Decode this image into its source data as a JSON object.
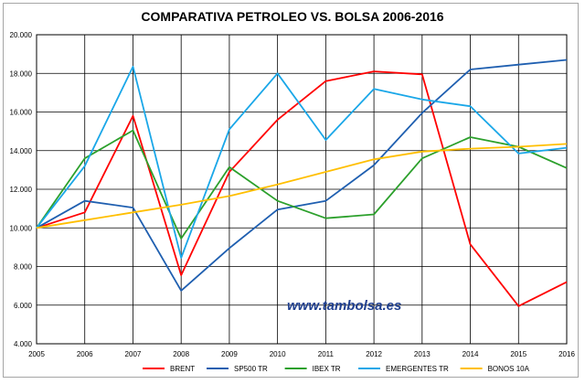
{
  "chart_data": {
    "type": "line",
    "title": "COMPARATIVA PETROLEO VS. BOLSA 2006-2016",
    "xlabel": "",
    "ylabel": "",
    "categories": [
      "2005",
      "2006",
      "2007",
      "2008",
      "2009",
      "2010",
      "2011",
      "2012",
      "2013",
      "2014",
      "2015",
      "2016"
    ],
    "ylim": [
      4000,
      20000
    ],
    "yticks": [
      4000,
      6000,
      8000,
      10000,
      12000,
      14000,
      16000,
      18000,
      20000
    ],
    "ytick_labels": [
      "4.000",
      "6.000",
      "8.000",
      "10.000",
      "12.000",
      "14.000",
      "16.000",
      "18.000",
      "20.000"
    ],
    "grid": true,
    "legend": "bottom",
    "annotation": "www.tambolsa.es",
    "series": [
      {
        "name": "BRENT",
        "color": "#ff0000",
        "values": [
          10000,
          10800,
          15800,
          7550,
          12900,
          15600,
          17600,
          18100,
          17950,
          9150,
          5950,
          7200
        ]
      },
      {
        "name": "SP500 TR",
        "color": "#1f5fb0",
        "values": [
          10000,
          11400,
          11050,
          6750,
          8950,
          10950,
          11400,
          13250,
          15950,
          18200,
          18450,
          18700
        ]
      },
      {
        "name": "IBEX TR",
        "color": "#2ca02c",
        "values": [
          10000,
          13600,
          15050,
          9450,
          13150,
          11400,
          10500,
          10700,
          13600,
          14700,
          14200,
          13100
        ]
      },
      {
        "name": "EMERGENTES TR",
        "color": "#1aa7e8",
        "values": [
          10000,
          13200,
          18350,
          8450,
          15100,
          18000,
          14550,
          17200,
          16650,
          16300,
          13850,
          14150
        ]
      },
      {
        "name": "BONOS 10A",
        "color": "#ffbf00",
        "values": [
          10000,
          10400,
          10800,
          11200,
          11650,
          12250,
          12900,
          13550,
          13950,
          14100,
          14200,
          14350
        ]
      }
    ]
  }
}
